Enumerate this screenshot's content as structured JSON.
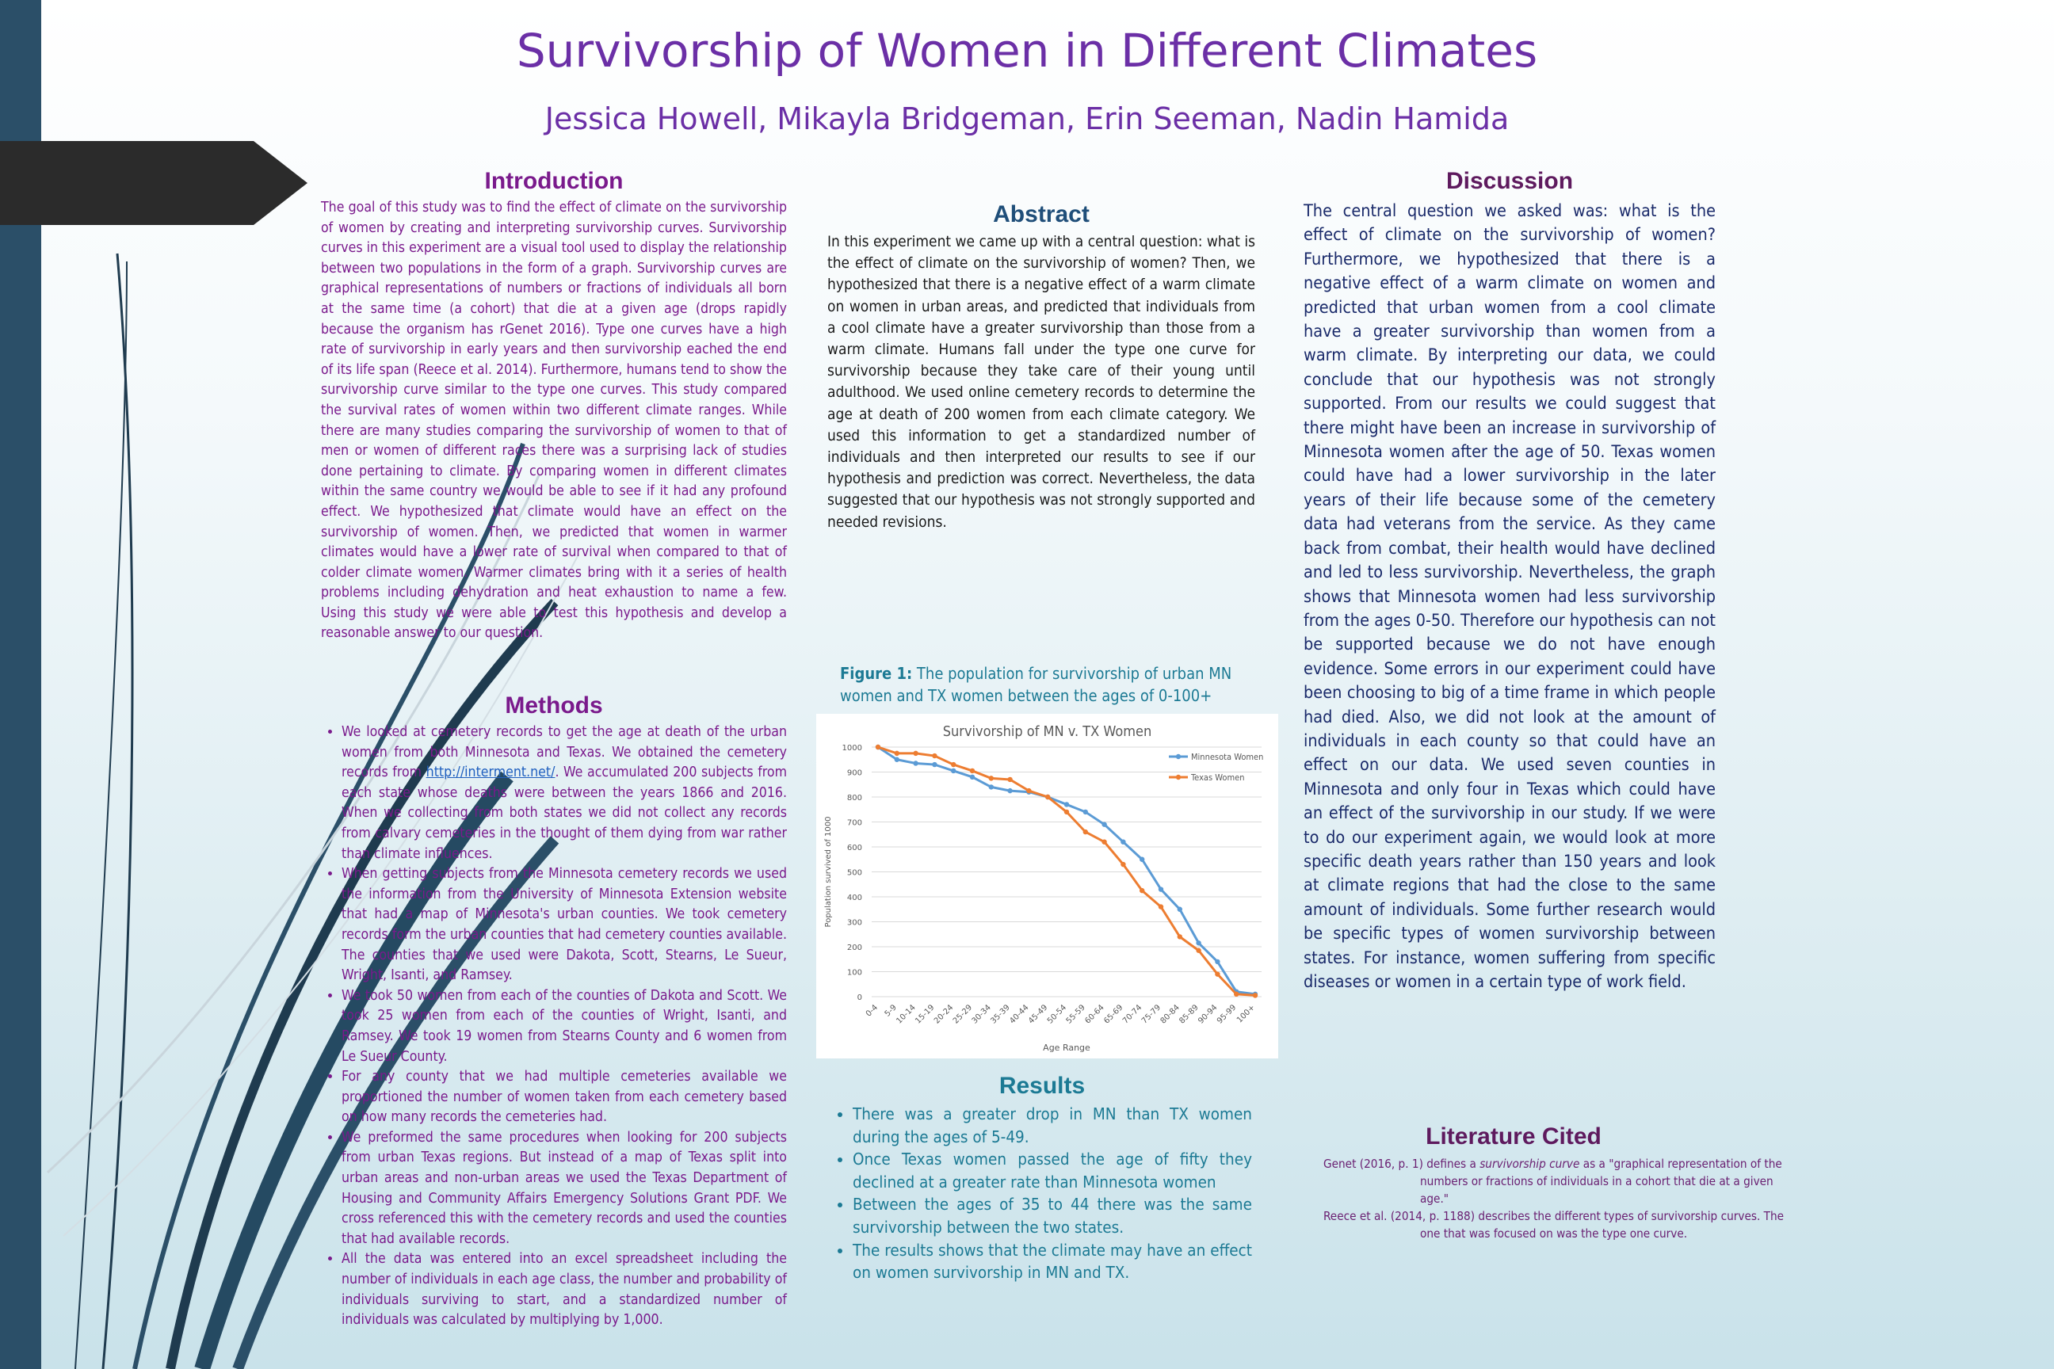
{
  "poster": {
    "title": "Survivorship of Women in Different Climates",
    "authors": "Jessica Howell, Mikayla Bridgeman, Erin Seeman, Nadin Hamida"
  },
  "introduction": {
    "heading": "Introduction",
    "text": "The goal of this study was to find the effect of climate on the survivorship of women by creating and interpreting survivorship curves. Survivorship curves in this experiment are a visual tool used to display the relationship between two populations in the form of a graph. Survivorship curves are graphical representations of numbers or fractions of individuals all born at the same time (a cohort) that die at a given age (drops rapidly because the organism has rGenet 2016). Type one curves have a high rate of survivorship in early years and then survivorship eached the end of its life span (Reece et al. 2014). Furthermore, humans tend to show the survivorship curve similar to the type one curves. This study compared the survival rates of women within two different climate ranges. While there are many studies comparing the survivorship of women to that of men or women of different races there was a surprising lack of studies done pertaining to climate. By comparing women in different climates within the same country we would be able to see if it had any profound effect. We hypothesized that climate would have an effect on the survivorship of women. Then, we predicted that women in warmer climates would have a lower rate of survival when compared to that of colder climate women. Warmer climates bring with it a series of health problems including dehydration and heat exhaustion to name a few. Using this study we were able to test this hypothesis and develop a reasonable answer to our question."
  },
  "methods": {
    "heading": "Methods",
    "items": [
      {
        "before": "We looked at cemetery records to get the age at death of the urban women from both Minnesota and Texas. We obtained the cemetery records from ",
        "link": "http://interment.net/",
        "after": ". We accumulated 200 subjects from each state whose deaths were between the years 1866 and 2016. When we collecting from both states we did not collect any records from calvary cemeteries in the thought of them dying from war rather than climate influences."
      },
      {
        "text": "When getting subjects from the Minnesota cemetery records we used the information from the University of Minnesota Extension website that had a map of Minnesota's urban counties. We took cemetery records form the urban counties that had cemetery counties available. The counties that we used were Dakota, Scott, Stearns, Le Sueur, Wright, Isanti, and Ramsey."
      },
      {
        "text": "We took 50 women from each of the counties of Dakota and Scott. We took 25 women from each of the counties of Wright, Isanti, and Ramsey. We took 19 women from Stearns County and 6 women from Le Sueur County."
      },
      {
        "text": "For any county that we had multiple cemeteries available we proportioned the number of women taken from each cemetery based on how many records the cemeteries had."
      },
      {
        "text": "We preformed the same procedures when looking for 200 subjects from urban Texas regions. But instead of a map of Texas split into urban areas and non-urban areas we used the Texas Department of Housing and Community Affairs Emergency Solutions Grant PDF. We cross referenced this with the cemetery records and used the counties that had available records."
      },
      {
        "text": "All the data was entered into an excel spreadsheet including the number of individuals in each age class, the number and probability of individuals surviving to start, and a standardized number of individuals was calculated by multiplying by 1,000."
      }
    ]
  },
  "abstract": {
    "heading": "Abstract",
    "text": "In this experiment we came up with a central question: what is the effect of climate on the survivorship of women? Then, we hypothesized that there is a negative effect of a warm climate on women in urban areas, and predicted that individuals from a cool climate have a greater survivorship than those from a warm climate. Humans fall under the type one curve for survivorship because they take care of their young until adulthood. We used online cemetery records to determine the age at death of 200 women from each climate category. We used this information to get a standardized number of individuals and then interpreted our results to see if our hypothesis and prediction was correct. Nevertheless, the data suggested that our hypothesis was not strongly supported and needed revisions."
  },
  "figure": {
    "label": "Figure 1:",
    "caption": " The population for survivorship of urban MN women and TX women between the ages of 0-100+"
  },
  "chart_data": {
    "type": "line",
    "title": "Survivorship of MN v. TX Women",
    "xlabel": "Age Range",
    "ylabel": "Population survived of 1000",
    "ylim": [
      0,
      1000
    ],
    "yticks": [
      0,
      100,
      200,
      300,
      400,
      500,
      600,
      700,
      800,
      900,
      1000
    ],
    "grid": true,
    "legend_position": "top-right",
    "categories": [
      "0-4",
      "5-9",
      "10-14",
      "15-19",
      "20-24",
      "25-29",
      "30-34",
      "35-39",
      "40-44",
      "45-49",
      "50-54",
      "55-59",
      "60-64",
      "65-69",
      "70-74",
      "75-79",
      "80-84",
      "85-89",
      "90-94",
      "95-99",
      "100+"
    ],
    "series": [
      {
        "name": "Minnesota Women",
        "color": "#5b9bd5",
        "values": [
          1000,
          950,
          935,
          930,
          905,
          880,
          840,
          825,
          820,
          800,
          770,
          740,
          690,
          620,
          550,
          430,
          350,
          215,
          140,
          20,
          10
        ]
      },
      {
        "name": "Texas Women",
        "color": "#ed7d31",
        "values": [
          1000,
          975,
          975,
          965,
          930,
          905,
          875,
          870,
          825,
          800,
          740,
          660,
          620,
          530,
          425,
          360,
          240,
          185,
          90,
          10,
          5
        ]
      }
    ]
  },
  "results": {
    "heading": "Results",
    "items": [
      "There was a greater drop in MN than TX women during the ages of 5-49.",
      "Once Texas women passed the age of fifty they declined at a greater rate than Minnesota women",
      "Between the ages of 35 to 44 there was the same survivorship between the two states.",
      "The results shows that the climate may have an effect on women survivorship in MN and TX."
    ]
  },
  "discussion": {
    "heading": "Discussion",
    "text": "The central question we asked was: what is the effect of climate on the survivorship of women? Furthermore, we hypothesized that there is a negative effect of a warm climate on women and predicted that urban women from a cool climate have a greater survivorship than women from a warm climate. By interpreting our data, we could conclude that our hypothesis was not strongly supported. From our results we could suggest that there might have been an increase in survivorship of Minnesota women after the age of 50. Texas women could have had a lower survivorship in the later years of their life because some of the cemetery data had veterans from the service. As they came back from combat, their health would have declined and led to less survivorship. Nevertheless, the graph shows that Minnesota women had less survivorship from the ages 0-50. Therefore our hypothesis can not be supported because we do not have enough evidence. Some errors in our experiment could have been choosing to big of a time frame in which people had died. Also, we did not look at the amount of individuals in each county so that could have an effect on our data. We used seven counties in Minnesota and only four in Texas which could have an effect of the survivorship in our study. If we were to do our experiment again, we would look at more specific death years rather than 150 years and look at climate regions that had the close to the same amount of individuals. Some further research would be specific types of women survivorship between states. For instance, women suffering from specific diseases or women in a certain type of work field."
  },
  "literature": {
    "heading": "Literature Cited",
    "refs": [
      {
        "before": "Genet (2016, p. 1) defines a ",
        "italic": "survivorship curve",
        "after": " as a \"graphical representation of the numbers or fractions of individuals in a cohort that die at a given age.\""
      },
      {
        "before": "Reece et al. (2014, p. 1188) describes the different types of survivorship curves. The one that was focused on was the type one curve.",
        "italic": "",
        "after": ""
      }
    ]
  }
}
